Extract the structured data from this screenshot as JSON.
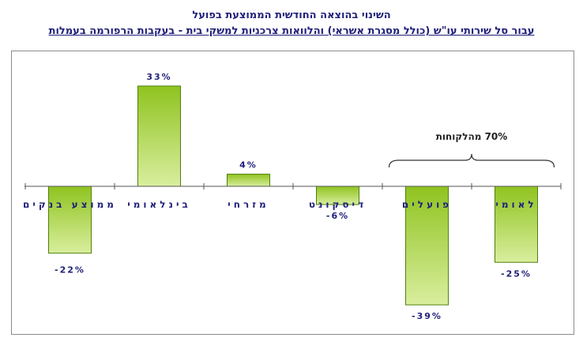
{
  "chart_data": {
    "type": "bar",
    "title": "השינוי בהוצאה החודשית הממוצעת בפועל",
    "subtitle": "עבור סל שירותי עו\"ש (כולל מסגרת אשראי) והלוואות צרכניות למשקי בית - בעקבות הרפורמה בעמלות",
    "categories": [
      "לאומי",
      "פועלים",
      "דיסקונט",
      "מזרחי",
      "בינלאומי",
      "ממוצע בנקים"
    ],
    "values": [
      -25,
      -39,
      -6,
      4,
      33,
      -22
    ],
    "value_labels": [
      "-25%",
      "-39%",
      "-6%",
      "4%",
      "33%",
      "-22%"
    ],
    "ylim": [
      -45,
      40
    ],
    "annotation": "70% מהלקוחות",
    "bar_gradient": [
      "#8fc31f",
      "#d9ee9e"
    ],
    "colors": {
      "title": "#1f1f7a",
      "axis": "#555555"
    }
  }
}
